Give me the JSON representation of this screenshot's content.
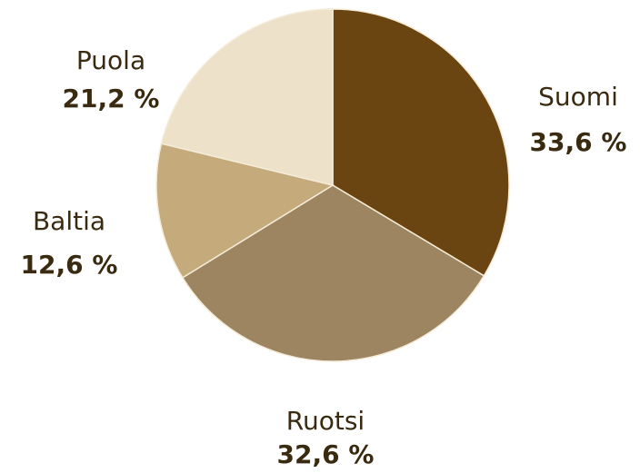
{
  "chart_data": {
    "type": "pie",
    "categories": [
      "Suomi",
      "Ruotsi",
      "Baltia",
      "Puola"
    ],
    "values": [
      33.6,
      32.6,
      12.6,
      21.2
    ],
    "value_labels": [
      "33,6 %",
      "32,6 %",
      "12,6 %",
      "21,2 %"
    ],
    "colors": [
      "#6b4511",
      "#9c8560",
      "#c5aa7c",
      "#ede1ca"
    ]
  }
}
